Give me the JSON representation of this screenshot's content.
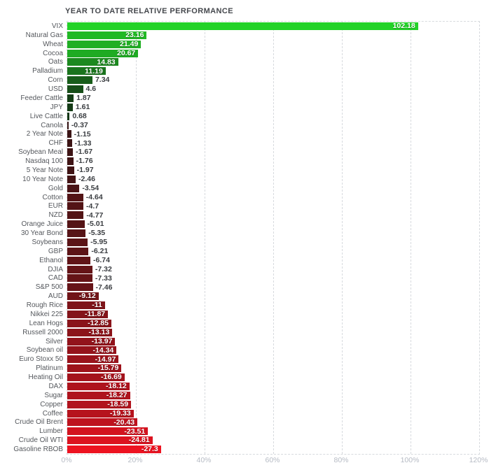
{
  "page": {
    "background": "#ffffff"
  },
  "chart_data": {
    "type": "bar",
    "orientation": "horizontal",
    "title": "YEAR TO DATE RELATIVE PERFORMANCE",
    "xlabel": "",
    "ylabel": "",
    "grid": "vertical dashed gridlines, dashed plot border",
    "legend": null,
    "encoding_note": "bar length = absolute YTD % change; green bars = positive values, red bars = negative values; color brightness scales with magnitude",
    "x_axis": {
      "min": 0,
      "max": 120,
      "unit": "%",
      "tick_values": [
        0,
        20,
        40,
        60,
        80,
        100,
        120
      ],
      "ticks": [
        "0%",
        "20%",
        "40%",
        "60%",
        "80%",
        "100%",
        "120%"
      ]
    },
    "categories": [
      "VIX",
      "Natural Gas",
      "Wheat",
      "Cocoa",
      "Oats",
      "Palladium",
      "Corn",
      "USD",
      "Feeder Cattle",
      "JPY",
      "Live Cattle",
      "Canola",
      "2 Year Note",
      "CHF",
      "Soybean Meal",
      "Nasdaq 100",
      "5 Year Note",
      "10 Year Note",
      "Gold",
      "Cotton",
      "EUR",
      "NZD",
      "Orange Juice",
      "30 Year Bond",
      "Soybeans",
      "GBP",
      "Ethanol",
      "DJIA",
      "CAD",
      "S&P 500",
      "AUD",
      "Rough Rice",
      "Nikkei 225",
      "Lean Hogs",
      "Russell 2000",
      "Silver",
      "Soybean oil",
      "Euro Stoxx 50",
      "Platinum",
      "Heating Oil",
      "DAX",
      "Sugar",
      "Copper",
      "Coffee",
      "Crude Oil Brent",
      "Lumber",
      "Crude Oil WTI",
      "Gasoline RBOB"
    ],
    "values": [
      102.18,
      23.16,
      21.49,
      20.67,
      14.83,
      11.19,
      7.34,
      4.6,
      1.87,
      1.61,
      0.68,
      -0.37,
      -1.15,
      -1.33,
      -1.67,
      -1.76,
      -1.97,
      -2.46,
      -3.54,
      -4.64,
      -4.7,
      -4.77,
      -5.01,
      -5.35,
      -5.95,
      -6.21,
      -6.74,
      -7.32,
      -7.33,
      -7.46,
      -9.12,
      -11,
      -11.87,
      -12.85,
      -13.13,
      -13.97,
      -14.34,
      -14.97,
      -15.79,
      -16.69,
      -18.12,
      -18.27,
      -18.59,
      -19.33,
      -20.43,
      -23.51,
      -24.81,
      -27.3
    ],
    "value_labels": [
      "102.18",
      "23.16",
      "21.49",
      "20.67",
      "14.83",
      "11.19",
      "7.34",
      "4.6",
      "1.87",
      "1.61",
      "0.68",
      "-0.37",
      "-1.15",
      "-1.33",
      "-1.67",
      "-1.76",
      "-1.97",
      "-2.46",
      "-3.54",
      "-4.64",
      "-4.7",
      "-4.77",
      "-5.01",
      "-5.35",
      "-5.95",
      "-6.21",
      "-6.74",
      "-7.32",
      "-7.33",
      "-7.46",
      "-9.12",
      "-11",
      "-11.87",
      "-12.85",
      "-13.13",
      "-13.97",
      "-14.34",
      "-14.97",
      "-15.79",
      "-16.69",
      "-18.12",
      "-18.27",
      "-18.59",
      "-19.33",
      "-20.43",
      "-23.51",
      "-24.81",
      "-27.3"
    ]
  },
  "style": {
    "title_color": "#45484d",
    "category_label_color": "#55585d",
    "inside_value_color": "#ffffff",
    "outside_value_color": "#3b3e42",
    "axis_tick_color": "#b6bbc4",
    "grid_color": "#d7dade",
    "positive_bright": "#23d228",
    "positive_dark": "#143315",
    "negative_bright": "#ee1321",
    "negative_dark": "#331414",
    "color_cap": 27.5,
    "inside_label_min": 9
  }
}
